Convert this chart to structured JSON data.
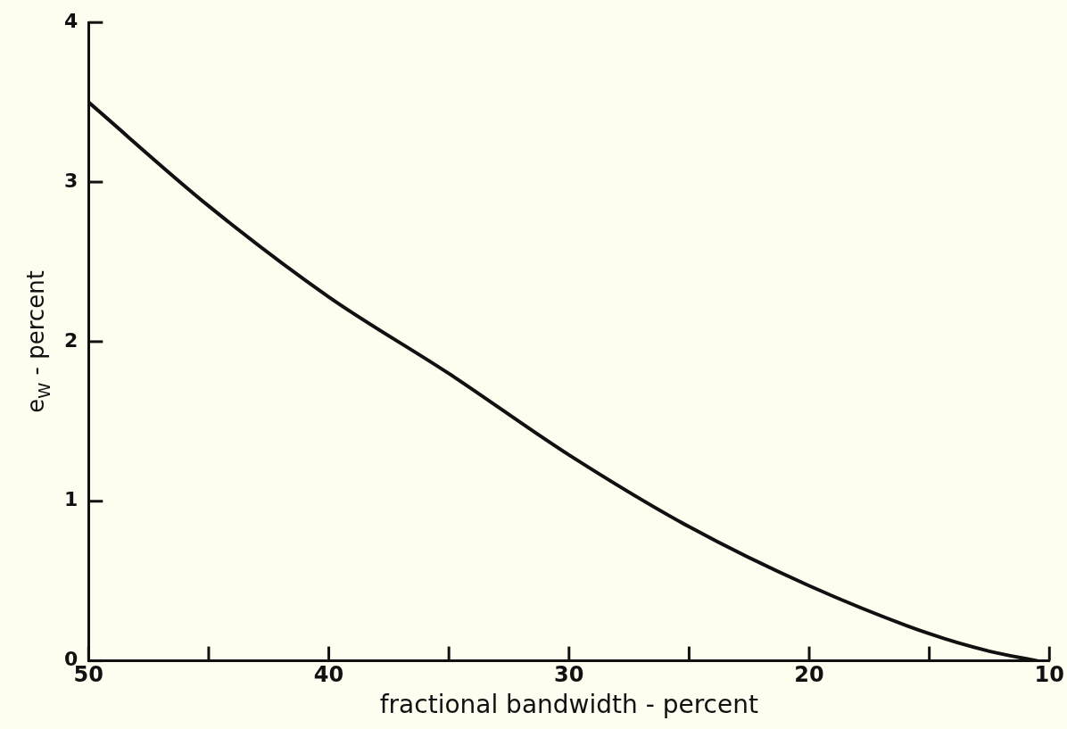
{
  "chart_data": {
    "type": "line",
    "xlabel": "fractional bandwidth - percent",
    "ylabel": "e$_{W}$ - percent",
    "x": [
      50,
      45,
      40,
      35,
      30,
      25,
      20,
      15,
      12.5,
      10.5
    ],
    "series": [
      {
        "color": "#111111",
        "values": [
          3.5,
          2.85,
          2.28,
          1.8,
          1.29,
          0.84,
          0.47,
          0.17,
          0.06,
          0
        ]
      }
    ],
    "xlim": [
      50,
      10
    ],
    "xticks": [
      50,
      {
        "value": 45,
        "label": null
      },
      40,
      {
        "value": 35,
        "label": null
      },
      30,
      {
        "value": 25,
        "label": null
      },
      20,
      {
        "value": 15,
        "label": null
      },
      10
    ],
    "ylim": [
      0,
      4
    ],
    "yticks": [
      0,
      1,
      2,
      3,
      4
    ],
    "grid": false,
    "legend": false,
    "marker": "none",
    "line_style": "solid"
  }
}
